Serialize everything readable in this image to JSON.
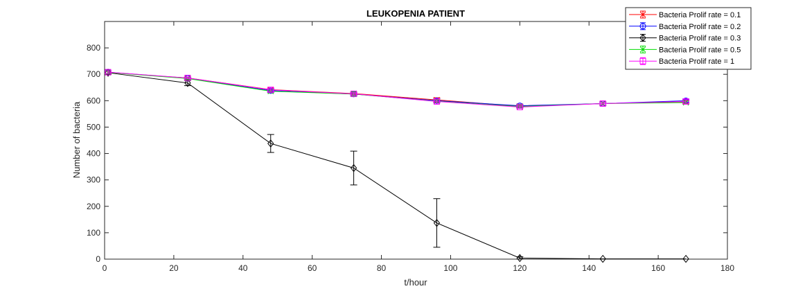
{
  "chart_data": {
    "type": "line",
    "title": "LEUKOPENIA PATIENT",
    "xlabel": "t/hour",
    "ylabel": "Number of bacteria",
    "xlim": [
      0,
      180
    ],
    "ylim": [
      0,
      900
    ],
    "xticks": [
      0,
      20,
      40,
      60,
      80,
      100,
      120,
      140,
      160,
      180
    ],
    "yticks": [
      0,
      100,
      200,
      300,
      400,
      500,
      600,
      700,
      800
    ],
    "grid": false,
    "legend_position": "top-right",
    "series": [
      {
        "name": "Bacteria Prolif rate = 0.1",
        "color": "#ff0000",
        "marker": "x",
        "x": [
          1,
          24,
          48,
          72,
          96,
          120,
          144,
          168
        ],
        "y": [
          707,
          686,
          642,
          627,
          603,
          579,
          589,
          596
        ],
        "err": [
          5,
          4,
          6,
          5,
          8,
          5,
          6,
          6
        ]
      },
      {
        "name": "Bacteria Prolif rate = 0.2",
        "color": "#0000ff",
        "marker": "circle",
        "x": [
          1,
          24,
          48,
          72,
          96,
          120,
          144,
          168
        ],
        "y": [
          708,
          685,
          638,
          625,
          600,
          581,
          589,
          600
        ],
        "err": [
          5,
          4,
          6,
          5,
          7,
          6,
          6,
          6
        ]
      },
      {
        "name": "Bacteria Prolif rate = 0.3",
        "color": "#000000",
        "marker": "diamond",
        "x": [
          1,
          24,
          48,
          72,
          96,
          120,
          144,
          168
        ],
        "y": [
          706,
          667,
          438,
          345,
          137,
          4,
          1,
          1
        ],
        "err": [
          6,
          10,
          34,
          64,
          92,
          5,
          0,
          0
        ]
      },
      {
        "name": "Bacteria Prolif rate = 0.5",
        "color": "#00dd00",
        "marker": "x",
        "x": [
          1,
          24,
          48,
          72,
          96,
          120,
          144,
          168
        ],
        "y": [
          707,
          684,
          636,
          625,
          598,
          578,
          589,
          593
        ],
        "err": [
          5,
          4,
          6,
          8,
          6,
          5,
          6,
          6
        ]
      },
      {
        "name": "Bacteria Prolif rate = 1",
        "color": "#ff00ff",
        "marker": "square",
        "x": [
          1,
          24,
          48,
          72,
          96,
          120,
          144,
          168
        ],
        "y": [
          708,
          686,
          641,
          626,
          597,
          576,
          589,
          597
        ],
        "err": [
          5,
          4,
          6,
          5,
          6,
          5,
          6,
          6
        ]
      }
    ]
  }
}
